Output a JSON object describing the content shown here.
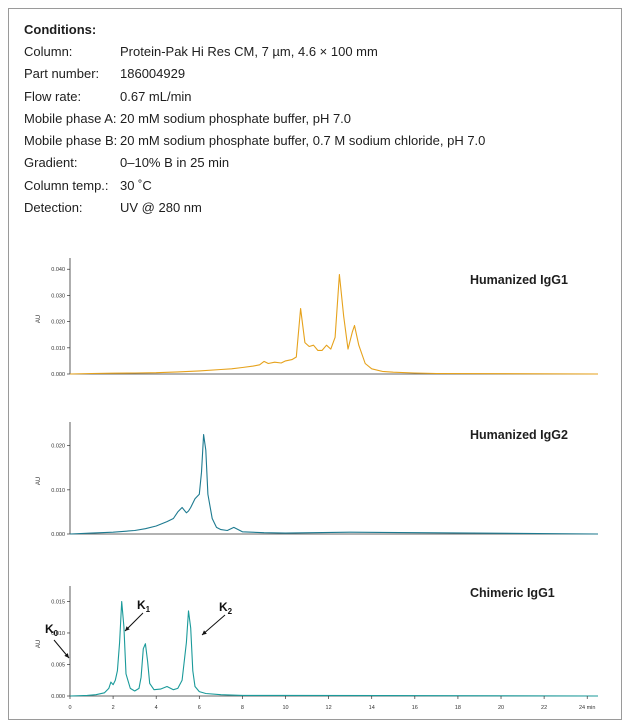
{
  "conditions": {
    "title": "Conditions:",
    "rows": [
      {
        "label": "Column:",
        "value": "Protein-Pak Hi Res CM, 7 µm, 4.6 × 100 mm"
      },
      {
        "label": "Part number:",
        "value": "186004929"
      },
      {
        "label": "Flow rate:",
        "value": "0.67 mL/min"
      },
      {
        "label": "Mobile phase A:",
        "value": "20 mM sodium phosphate buffer, pH 7.0"
      },
      {
        "label": "Mobile phase B:",
        "value": "20 mM sodium phosphate buffer, 0.7 M sodium chloride, pH 7.0"
      },
      {
        "label": "Gradient:",
        "value": "0–10% B in 25 min"
      },
      {
        "label": "Column temp.:",
        "value": "30 ˚C"
      },
      {
        "label": "Detection:",
        "value": "UV @ 280 nm"
      }
    ]
  },
  "chart_data": [
    {
      "type": "line",
      "title": "Humanized IgG1",
      "ylabel": "AU",
      "color": "#e6a21c",
      "ylim": [
        0,
        0.042
      ],
      "yticks": [
        0.0,
        0.01,
        0.02,
        0.03,
        0.04
      ],
      "ytick_labels": [
        "0.000",
        "0.010",
        "0.020",
        "0.030",
        "0.040"
      ],
      "x": [
        0,
        1,
        2,
        3,
        4,
        5,
        6,
        7,
        7.5,
        8,
        8.5,
        8.8,
        9.0,
        9.2,
        9.5,
        9.8,
        10.0,
        10.3,
        10.5,
        10.7,
        10.9,
        11.1,
        11.3,
        11.5,
        11.7,
        11.9,
        12.1,
        12.3,
        12.5,
        12.7,
        12.9,
        13.1,
        13.2,
        13.4,
        13.7,
        14.0,
        14.5,
        15,
        16,
        17,
        24.5
      ],
      "y": [
        0,
        0.0002,
        0.0003,
        0.0004,
        0.0005,
        0.0008,
        0.0012,
        0.0017,
        0.002,
        0.0025,
        0.003,
        0.0035,
        0.0048,
        0.004,
        0.0045,
        0.0042,
        0.005,
        0.0055,
        0.0065,
        0.025,
        0.012,
        0.0105,
        0.011,
        0.009,
        0.009,
        0.011,
        0.0095,
        0.014,
        0.038,
        0.022,
        0.0095,
        0.016,
        0.0185,
        0.011,
        0.004,
        0.002,
        0.001,
        0.0007,
        0.0004,
        0.0002,
        0
      ]
    },
    {
      "type": "line",
      "title": "Humanized IgG2",
      "ylabel": "AU",
      "color": "#1d7a90",
      "ylim": [
        0,
        0.024
      ],
      "yticks": [
        0.0,
        0.01,
        0.02
      ],
      "ytick_labels": [
        "0.000",
        "0.010",
        "0.020"
      ],
      "x": [
        0,
        1,
        2,
        3,
        3.5,
        4.0,
        4.5,
        4.8,
        5.0,
        5.2,
        5.4,
        5.5,
        5.6,
        5.8,
        6.0,
        6.1,
        6.2,
        6.3,
        6.4,
        6.6,
        6.8,
        7.0,
        7.3,
        7.6,
        8,
        9,
        10,
        13,
        24.5
      ],
      "y": [
        0,
        0.0002,
        0.0004,
        0.0008,
        0.0012,
        0.0018,
        0.0028,
        0.0035,
        0.005,
        0.006,
        0.0048,
        0.0052,
        0.006,
        0.008,
        0.009,
        0.014,
        0.0225,
        0.019,
        0.009,
        0.0035,
        0.0015,
        0.001,
        0.0008,
        0.0015,
        0.0005,
        0.0003,
        0.0002,
        0.0004,
        0
      ]
    },
    {
      "type": "line",
      "title": "Chimeric IgG1",
      "ylabel": "AU",
      "color": "#1a9a9a",
      "ylim": [
        0,
        0.0165
      ],
      "yticks": [
        0.0,
        0.005,
        0.01,
        0.015
      ],
      "ytick_labels": [
        "0.000",
        "0.005",
        "0.010",
        "0.015"
      ],
      "xlim": [
        0,
        24.5
      ],
      "xticks": [
        0,
        2,
        4,
        6,
        8,
        10,
        12,
        14,
        16,
        18,
        20,
        22,
        24
      ],
      "xtick_labels": [
        "0",
        "2",
        "4",
        "6",
        "8",
        "10",
        "12",
        "14",
        "16",
        "18",
        "20",
        "22",
        "24 min"
      ],
      "x": [
        0,
        0.8,
        1.2,
        1.6,
        1.8,
        1.9,
        2.0,
        2.1,
        2.2,
        2.3,
        2.4,
        2.5,
        2.6,
        2.8,
        3.0,
        3.2,
        3.3,
        3.4,
        3.5,
        3.6,
        3.7,
        3.9,
        4.2,
        4.5,
        4.8,
        5.0,
        5.2,
        5.4,
        5.5,
        5.6,
        5.7,
        5.8,
        6.0,
        6.3,
        7.0,
        8,
        10,
        24.5
      ],
      "y": [
        0,
        0.0001,
        0.0002,
        0.0005,
        0.0012,
        0.0022,
        0.0018,
        0.0025,
        0.004,
        0.0085,
        0.015,
        0.011,
        0.0035,
        0.0012,
        0.0008,
        0.0012,
        0.003,
        0.0075,
        0.0083,
        0.0055,
        0.002,
        0.001,
        0.0011,
        0.0015,
        0.001,
        0.0012,
        0.0025,
        0.0085,
        0.0135,
        0.0108,
        0.004,
        0.0015,
        0.0007,
        0.0004,
        0.0002,
        0.0001,
        0.0001,
        0
      ],
      "annotations": [
        {
          "label": "K",
          "sub": "0",
          "x": 2.2,
          "y": 0.0055
        },
        {
          "label": "K",
          "sub": "1",
          "x": 3.55,
          "y": 0.0078
        },
        {
          "label": "K",
          "sub": "2",
          "x": 5.55,
          "y": 0.0088
        }
      ]
    }
  ]
}
